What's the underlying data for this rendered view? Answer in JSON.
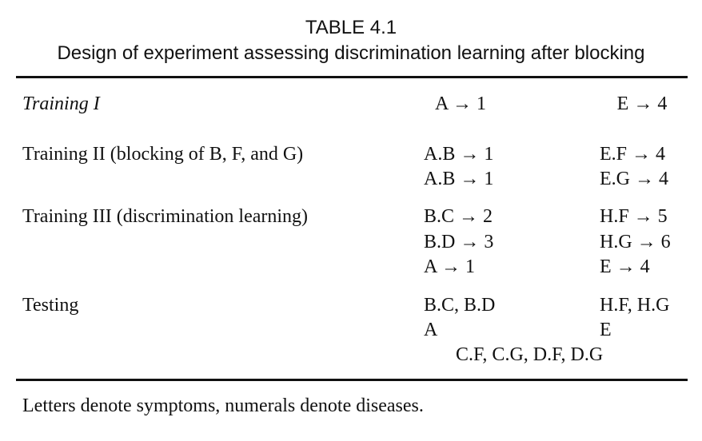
{
  "table": {
    "number": "TABLE 4.1",
    "caption": "Design of experiment assessing discrimination learning after blocking",
    "rows": [
      {
        "label": "Training I",
        "col1": [
          "A → 1"
        ],
        "col2": [
          "E → 4"
        ]
      },
      {
        "label": "Training II (blocking of B, F, and G)",
        "col1": [
          "A.B → 1",
          "A.B → 1"
        ],
        "col2": [
          "E.F → 4",
          "E.G → 4"
        ]
      },
      {
        "label": "Training III (discrimination learning)",
        "col1": [
          "B.C → 2",
          "B.D → 3",
          "A → 1"
        ],
        "col2": [
          "H.F → 5",
          "H.G → 6",
          "E → 4"
        ]
      },
      {
        "label": "Testing",
        "col1": [
          "B.C, B.D",
          "A"
        ],
        "col2": [
          "H.F, H.G",
          "E"
        ],
        "span": "C.F, C.G, D.F, D.G"
      }
    ],
    "note": "Letters denote symptoms, numerals denote diseases."
  }
}
